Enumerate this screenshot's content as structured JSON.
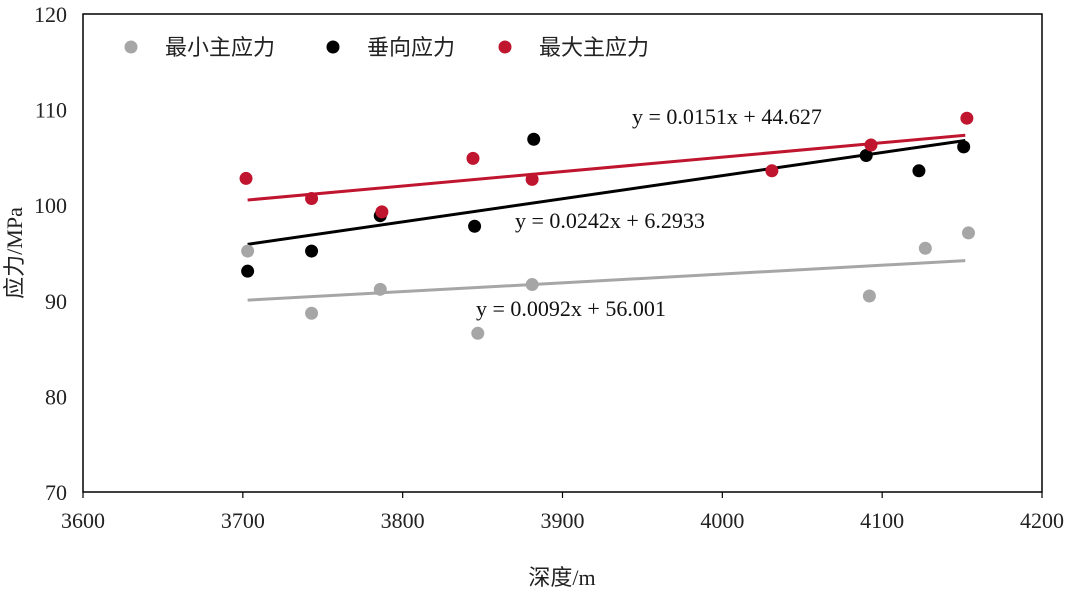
{
  "chart_data": {
    "type": "scatter",
    "xlabel": "深度/m",
    "ylabel": "应力/MPa",
    "xlim": [
      3600,
      4200
    ],
    "ylim": [
      70,
      120
    ],
    "xticks": [
      3600,
      3700,
      3800,
      3900,
      4000,
      4100,
      4200
    ],
    "yticks": [
      70,
      80,
      90,
      100,
      110,
      120
    ],
    "legend_position": "top-left",
    "series": [
      {
        "name": "最小主应力",
        "color": "#a6a6a6",
        "x": [
          3703,
          3743,
          3786,
          3847,
          3881,
          4092,
          4127,
          4154
        ],
        "y": [
          95.2,
          88.7,
          91.2,
          86.6,
          91.7,
          90.5,
          95.5,
          97.1
        ],
        "trend": {
          "slope": 0.0092,
          "intercept": 56.001,
          "x_range": [
            3703,
            4152
          ],
          "label": "y = 0.0092x + 56.001"
        }
      },
      {
        "name": "垂向应力",
        "color": "#000000",
        "x": [
          3703,
          3743,
          3786,
          3845,
          3882,
          4090,
          4123,
          4151
        ],
        "y": [
          93.1,
          95.2,
          98.9,
          97.8,
          106.9,
          105.2,
          103.6,
          106.1
        ],
        "trend": {
          "slope": 0.0242,
          "intercept": 6.2933,
          "x_range": [
            3703,
            4152
          ],
          "label": "y = 0.0242x + 6.2933"
        }
      },
      {
        "name": "最大主应力",
        "color": "#c0152f",
        "x": [
          3702,
          3743,
          3787,
          3844,
          3881,
          4031,
          4093,
          4153
        ],
        "y": [
          102.8,
          100.7,
          99.3,
          104.9,
          102.7,
          103.6,
          106.3,
          109.1
        ],
        "trend": {
          "slope": 0.0151,
          "intercept": 44.627,
          "x_range": [
            3703,
            4152
          ],
          "label": "y = 0.0151x + 44.627"
        }
      }
    ]
  }
}
